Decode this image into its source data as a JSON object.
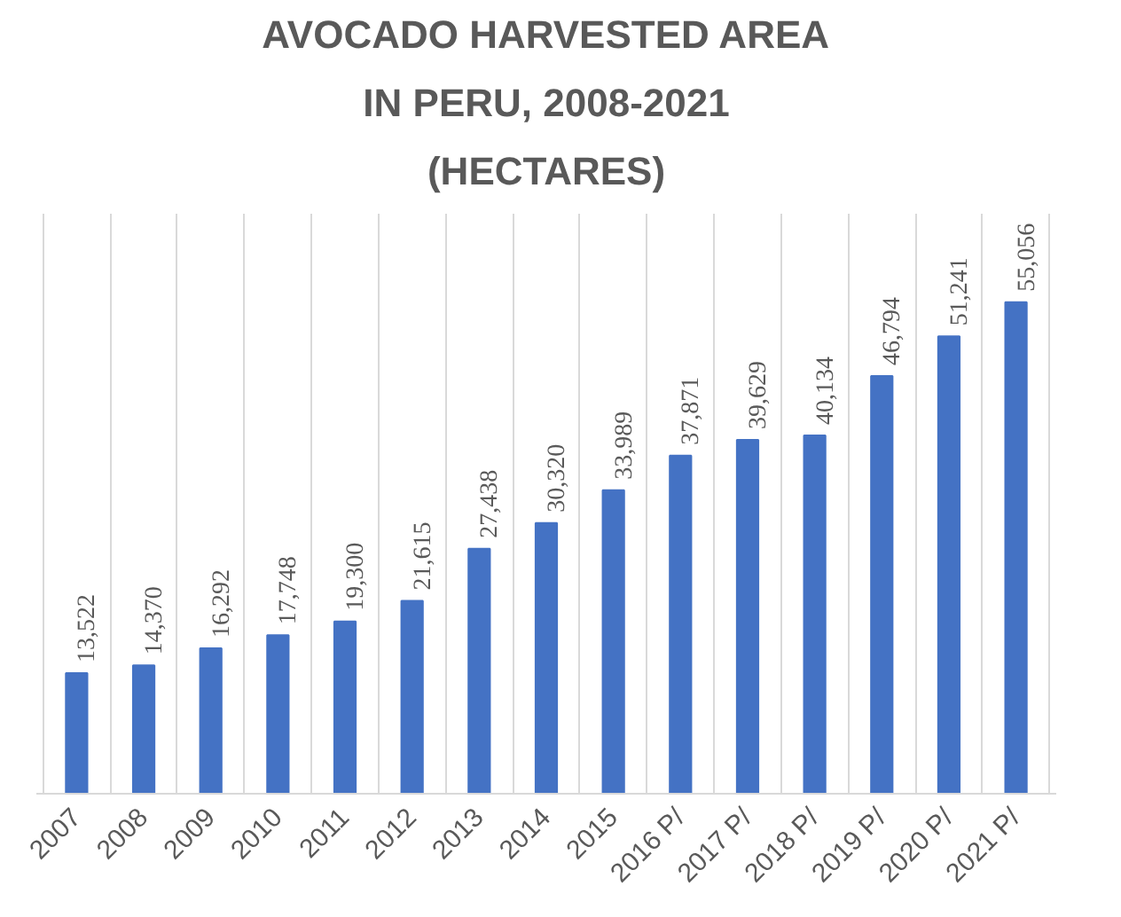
{
  "chart_data": {
    "type": "bar",
    "title": "AVOCADO HARVESTED AREA IN PERU, 2008-2021 (HECTARES)",
    "categories": [
      "2007",
      "2008",
      "2009",
      "2010",
      "2011",
      "2012",
      "2013",
      "2014",
      "2015",
      "2016 P/",
      "2017 P/",
      "2018 P/",
      "2019 P/",
      "2020 P/",
      "2021 P/"
    ],
    "values": [
      13522,
      14370,
      16292,
      17748,
      19300,
      21615,
      27438,
      30320,
      33989,
      37871,
      39629,
      40134,
      46794,
      51241,
      55056
    ],
    "value_labels": [
      "13,522",
      "14,370",
      "16,292",
      "17,748",
      "19,300",
      "21,615",
      "27,438",
      "30,320",
      "33,989",
      "37,871",
      "39,629",
      "40,134",
      "46,794",
      "51,241",
      "55,056"
    ],
    "color": "#4472c4",
    "grid": "x"
  }
}
